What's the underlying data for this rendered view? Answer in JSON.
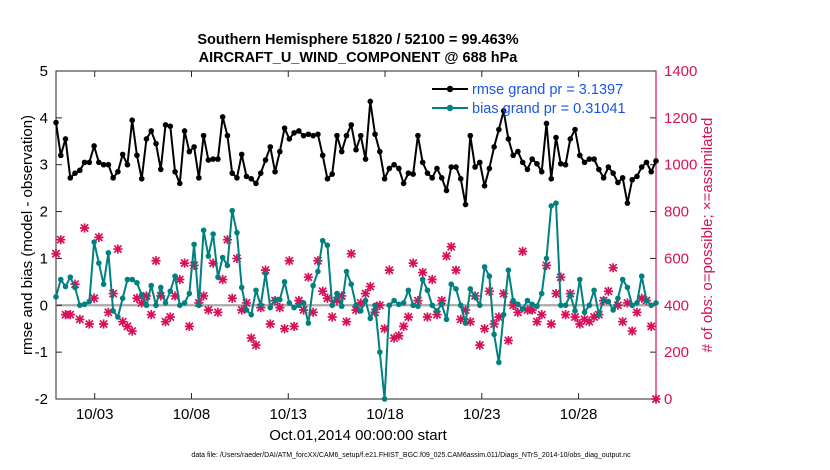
{
  "chart_data": {
    "type": "line",
    "title_line1": "Southern Hemisphere 51820 / 52100 = 99.463%",
    "title_line2": "AIRCRAFT_U_WIND_COMPONENT @ 688 hPa",
    "xlabel": "Oct.01,2014 00:00:00 start",
    "ylabel_left": "rmse and bias (model - observation)",
    "ylabel_right": "# of obs: o=possible; ×=assimilated",
    "footer": "data file: /Users/raeder/DAI/ATM_forcXX/CAM6_setup/f.e21.FHIST_BGC.f09_025.CAM6assim.011/Diags_NTrS_2014-10/obs_diag_output.nc",
    "xlim": [
      1.0,
      32.0
    ],
    "x_ticks": [
      3,
      8,
      13,
      18,
      23,
      28
    ],
    "x_tick_labels": [
      "10/03",
      "10/08",
      "10/13",
      "10/18",
      "10/23",
      "10/28"
    ],
    "ylim_left": [
      -2,
      5
    ],
    "y_ticks_left": [
      -2,
      -1,
      0,
      1,
      2,
      3,
      4,
      5
    ],
    "ylim_right": [
      0,
      1400
    ],
    "y_ticks_right": [
      0,
      200,
      400,
      600,
      800,
      1000,
      1200,
      1400
    ],
    "zero_line": 0,
    "colors": {
      "rmse": "#000000",
      "bias": "#008080",
      "obs": "#d6115a",
      "zero_line": "#aaaaaa",
      "legend_text": "#1a56e8"
    },
    "series": [
      {
        "name": "rmse",
        "legend": "rmse grand pr = 3.1397",
        "values": [
          3.9,
          3.2,
          3.55,
          2.72,
          2.82,
          2.88,
          3.05,
          3.05,
          3.4,
          3.05,
          3.0,
          3.0,
          2.72,
          2.85,
          3.22,
          3.0,
          3.95,
          3.2,
          2.7,
          3.55,
          3.72,
          3.45,
          2.9,
          3.85,
          3.82,
          2.85,
          2.6,
          3.72,
          3.28,
          3.38,
          2.72,
          3.62,
          3.1,
          3.12,
          3.12,
          4.02,
          3.62,
          2.82,
          2.72,
          3.22,
          2.75,
          2.7,
          2.6,
          2.82,
          3.1,
          3.38,
          2.85,
          3.28,
          3.78,
          3.55,
          3.68,
          3.72,
          3.62,
          3.65,
          3.62,
          3.65,
          3.2,
          2.7,
          2.8,
          3.62,
          3.28,
          3.62,
          3.85,
          3.32,
          3.62,
          3.12,
          4.35,
          3.65,
          3.28,
          2.7,
          2.92,
          3.0,
          2.92,
          2.6,
          2.82,
          2.8,
          3.62,
          3.05,
          2.82,
          2.72,
          2.92,
          2.72,
          2.45,
          2.95,
          2.95,
          2.7,
          2.15,
          3.62,
          2.95,
          3.05,
          2.55,
          2.92,
          3.38,
          3.75,
          4.15,
          3.55,
          3.2,
          3.28,
          3.05,
          2.9,
          3.12,
          3.02,
          2.85,
          3.88,
          2.7,
          3.58,
          3.02,
          3.0,
          3.55,
          3.75,
          3.2,
          3.05,
          3.12,
          3.12,
          2.9,
          2.72,
          2.95,
          2.82,
          2.62,
          2.72,
          2.18,
          2.68,
          2.75,
          2.95,
          3.05,
          2.85,
          3.08
        ]
      },
      {
        "name": "bias",
        "legend": "bias grand pr = 0.31041",
        "values": [
          0.18,
          0.55,
          0.4,
          0.6,
          0.38,
          0.0,
          0.02,
          0.08,
          1.35,
          0.9,
          0.45,
          1.12,
          -0.12,
          -0.25,
          0.15,
          0.55,
          0.55,
          0.48,
          0.22,
          0.0,
          0.42,
          0.0,
          0.38,
          0.05,
          0.3,
          0.62,
          0.0,
          0.05,
          0.25,
          1.3,
          0.0,
          1.6,
          1.05,
          1.52,
          0.6,
          1.02,
          0.85,
          2.02,
          1.55,
          0.38,
          -0.1,
          -0.2,
          0.32,
          0.0,
          0.68,
          -0.05,
          0.12,
          0.12,
          0.5,
          0.05,
          -0.05,
          0.0,
          0.05,
          -0.38,
          0.42,
          0.72,
          1.38,
          1.28,
          0.0,
          0.25,
          -0.02,
          0.72,
          0.45,
          0.0,
          -0.12,
          0.1,
          -0.28,
          0.0,
          -1.0,
          -2.0,
          0.0,
          0.1,
          0.02,
          0.05,
          0.32,
          0.0,
          -0.02,
          0.55,
          0.32,
          0.0,
          -0.12,
          0.02,
          -0.3,
          0.45,
          0.35,
          0.0,
          -0.38,
          0.35,
          0.18,
          0.0,
          0.82,
          0.62,
          -0.62,
          -1.22,
          -0.2,
          0.75,
          0.1,
          0.02,
          -0.08,
          0.1,
          0.02,
          -0.02,
          0.25,
          1.0,
          2.12,
          2.18,
          0.0,
          0.0,
          0.22,
          -0.12,
          0.55,
          -0.15,
          0.0,
          0.32,
          -0.2,
          0.12,
          0.08,
          -0.1,
          0.15,
          0.55,
          0.38,
          0.0,
          0.05,
          0.62,
          0.1,
          0.0,
          0.05
        ]
      },
      {
        "name": "obs",
        "legend": "",
        "values": [
          620,
          680,
          360,
          360,
          490,
          340,
          730,
          320,
          430,
          690,
          320,
          370,
          450,
          640,
          330,
          310,
          290,
          430,
          410,
          440,
          360,
          590,
          440,
          330,
          350,
          440,
          510,
          580,
          310,
          570,
          410,
          440,
          380,
          580,
          370,
          510,
          680,
          430,
          600,
          380,
          410,
          260,
          230,
          390,
          550,
          320,
          420,
          390,
          300,
          590,
          310,
          420,
          380,
          520,
          370,
          590,
          460,
          430,
          350,
          420,
          440,
          330,
          620,
          380,
          410,
          450,
          480,
          370,
          400,
          300,
          550,
          260,
          270,
          310,
          350,
          580,
          420,
          540,
          350,
          510,
          360,
          420,
          610,
          650,
          550,
          340,
          380,
          330,
          440,
          230,
          300,
          460,
          320,
          350,
          450,
          250,
          400,
          370,
          630,
          380,
          380,
          330,
          360,
          570,
          320,
          450,
          520,
          360,
          450,
          350,
          320,
          340,
          330,
          350,
          360,
          420,
          460,
          560,
          400,
          330,
          410,
          290,
          370,
          430,
          420,
          310,
          0
        ]
      }
    ]
  }
}
